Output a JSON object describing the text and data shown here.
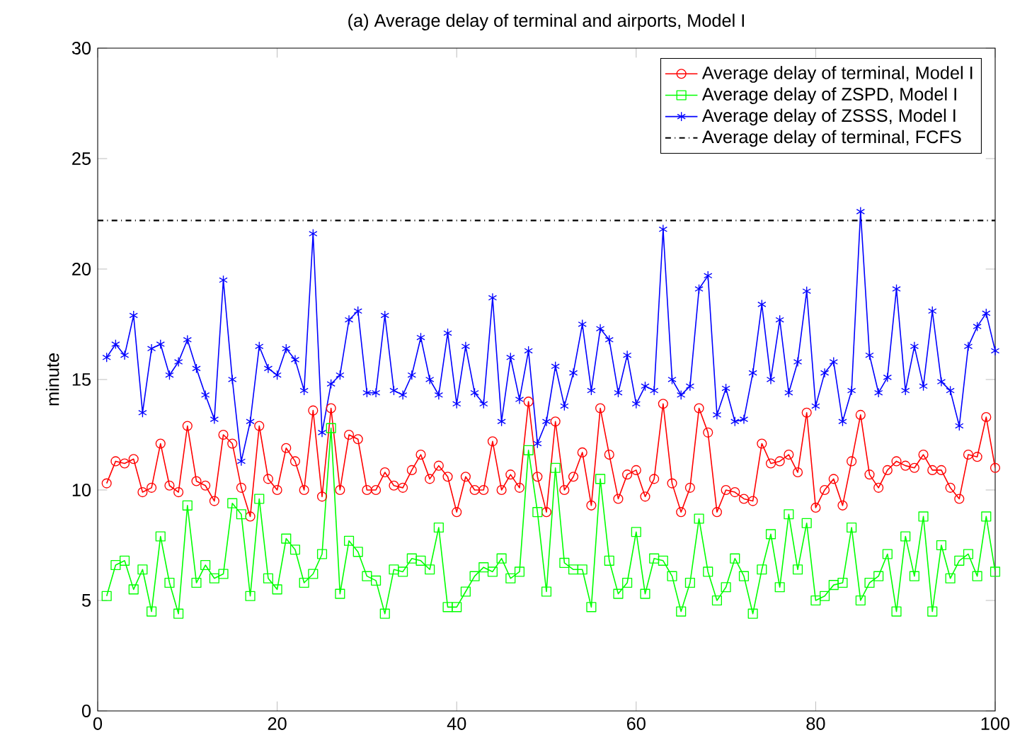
{
  "chart_data": {
    "type": "line",
    "title": "(a) Average delay of terminal and airports, Model I",
    "ylabel": "minute",
    "x": [
      1,
      2,
      3,
      4,
      5,
      6,
      7,
      8,
      9,
      10,
      11,
      12,
      13,
      14,
      15,
      16,
      17,
      18,
      19,
      20,
      21,
      22,
      23,
      24,
      25,
      26,
      27,
      28,
      29,
      30,
      31,
      32,
      33,
      34,
      35,
      36,
      37,
      38,
      39,
      40,
      41,
      42,
      43,
      44,
      45,
      46,
      47,
      48,
      49,
      50,
      51,
      52,
      53,
      54,
      55,
      56,
      57,
      58,
      59,
      60,
      61,
      62,
      63,
      64,
      65,
      66,
      67,
      68,
      69,
      70,
      71,
      72,
      73,
      74,
      75,
      76,
      77,
      78,
      79,
      80,
      81,
      82,
      83,
      84,
      85,
      86,
      87,
      88,
      89,
      90,
      91,
      92,
      93,
      94,
      95,
      96,
      97,
      98,
      99,
      100
    ],
    "series": [
      {
        "name": "Average delay of terminal, Model I",
        "color": "#ff0000",
        "marker": "circle",
        "values": [
          10.3,
          11.3,
          11.2,
          11.4,
          9.9,
          10.1,
          12.1,
          10.2,
          9.9,
          12.9,
          10.4,
          10.2,
          9.5,
          12.5,
          12.1,
          10.1,
          8.8,
          12.9,
          10.5,
          10.0,
          11.9,
          11.3,
          10.0,
          13.6,
          9.7,
          13.7,
          10.0,
          12.5,
          12.3,
          10.0,
          10.0,
          10.8,
          10.2,
          10.1,
          10.9,
          11.6,
          10.5,
          11.1,
          10.6,
          9.0,
          10.6,
          10.0,
          10.0,
          12.2,
          10.0,
          10.7,
          10.1,
          14.0,
          10.6,
          9.0,
          13.1,
          10.0,
          10.6,
          11.7,
          9.3,
          13.7,
          11.6,
          9.6,
          10.7,
          10.9,
          9.7,
          10.5,
          13.9,
          10.3,
          9.0,
          10.1,
          13.7,
          12.6,
          9.0,
          10.0,
          9.9,
          9.6,
          9.5,
          12.1,
          11.2,
          11.3,
          11.6,
          10.8,
          13.5,
          9.2,
          10.0,
          10.5,
          9.3,
          11.3,
          13.4,
          10.7,
          10.1,
          10.9,
          11.3,
          11.1,
          11.0,
          11.6,
          10.9,
          10.9,
          10.1,
          9.6,
          11.6,
          11.5,
          13.3,
          11.0
        ]
      },
      {
        "name": "Average delay of ZSPD, Model I",
        "color": "#00ff00",
        "marker": "square",
        "values": [
          5.2,
          6.6,
          6.8,
          5.5,
          6.4,
          4.5,
          7.9,
          5.8,
          4.4,
          9.3,
          5.8,
          6.6,
          6.0,
          6.2,
          9.4,
          8.9,
          5.2,
          9.6,
          6.0,
          5.5,
          7.8,
          7.3,
          5.8,
          6.2,
          7.1,
          12.8,
          5.3,
          7.7,
          7.2,
          6.1,
          5.9,
          4.4,
          6.4,
          6.3,
          6.9,
          6.8,
          6.4,
          8.3,
          4.7,
          4.7,
          5.4,
          6.1,
          6.5,
          6.3,
          6.9,
          6.0,
          6.3,
          11.8,
          9.0,
          5.4,
          11.0,
          6.7,
          6.4,
          6.4,
          4.7,
          10.5,
          6.8,
          5.3,
          5.8,
          8.1,
          5.3,
          6.9,
          6.8,
          6.1,
          4.5,
          5.8,
          8.7,
          6.3,
          5.0,
          5.6,
          6.9,
          6.1,
          4.4,
          6.4,
          8.0,
          5.6,
          8.9,
          6.4,
          8.5,
          5.0,
          5.2,
          5.7,
          5.8,
          8.3,
          5.0,
          5.8,
          6.1,
          7.1,
          4.5,
          7.9,
          6.1,
          8.8,
          4.5,
          7.5,
          6.0,
          6.8,
          7.1,
          6.1,
          8.8,
          6.3
        ]
      },
      {
        "name": "Average delay of ZSSS, Model I",
        "color": "#0000ff",
        "marker": "cross",
        "values": [
          16.0,
          16.6,
          16.1,
          17.9,
          13.5,
          16.4,
          16.6,
          15.2,
          15.8,
          16.8,
          15.5,
          14.3,
          13.2,
          19.5,
          15.0,
          11.3,
          13.1,
          16.5,
          15.5,
          15.2,
          16.4,
          15.9,
          14.5,
          21.6,
          12.6,
          14.8,
          15.2,
          17.7,
          18.1,
          14.4,
          14.4,
          17.9,
          14.5,
          14.3,
          15.2,
          16.9,
          15.0,
          14.3,
          17.1,
          13.9,
          16.5,
          14.4,
          13.9,
          18.7,
          13.1,
          16.0,
          14.1,
          16.3,
          12.1,
          13.1,
          15.6,
          13.8,
          15.3,
          17.5,
          14.5,
          17.3,
          16.8,
          14.4,
          16.1,
          13.9,
          14.7,
          14.5,
          21.8,
          15.0,
          14.3,
          14.7,
          19.1,
          19.7,
          13.4,
          14.6,
          13.1,
          13.2,
          15.3,
          18.4,
          15.0,
          17.7,
          14.4,
          15.8,
          19.0,
          13.8,
          15.3,
          15.8,
          13.1,
          14.5,
          22.6,
          16.1,
          14.4,
          15.1,
          19.1,
          14.5,
          16.5,
          14.7,
          18.1,
          14.9,
          14.5,
          12.9,
          16.5,
          17.4,
          18.0,
          16.3
        ]
      }
    ],
    "ref_lines": [
      {
        "axis": "y",
        "value": 22.2,
        "label": "Average delay of terminal, FCFS",
        "color": "#000000",
        "line_style": "dashdot"
      }
    ],
    "xlim": [
      0,
      100
    ],
    "xticks": [
      0,
      20,
      40,
      60,
      80,
      100
    ],
    "ylim": [
      0,
      30
    ],
    "yticks": [
      0,
      5,
      10,
      15,
      20,
      25,
      30
    ],
    "grid": false,
    "legend": "top right",
    "line_style": "solid"
  }
}
